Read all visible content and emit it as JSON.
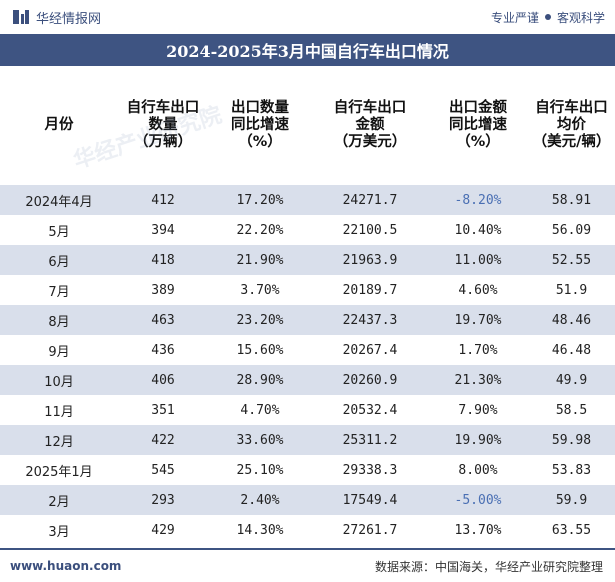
{
  "brand": {
    "name": "华经情报网",
    "tagline_left": "专业严谨",
    "tagline_right": "客观科学"
  },
  "title": "2024-2025年3月中国自行车出口情况",
  "columns": [
    "月份",
    "自行车出口\n数量\n（万辆）",
    "出口数量\n同比增速\n（%）",
    "自行车出口\n金额\n（万美元）",
    "出口金额\n同比增速\n（%）",
    "自行车出口\n均价\n（美元/辆）"
  ],
  "rows": [
    {
      "month": "2024年4月",
      "qty": "412",
      "qty_yoy": "17.20%",
      "amount": "24271.7",
      "amount_yoy": "-8.20%",
      "price": "58.91"
    },
    {
      "month": "5月",
      "qty": "394",
      "qty_yoy": "22.20%",
      "amount": "22100.5",
      "amount_yoy": "10.40%",
      "price": "56.09"
    },
    {
      "month": "6月",
      "qty": "418",
      "qty_yoy": "21.90%",
      "amount": "21963.9",
      "amount_yoy": "11.00%",
      "price": "52.55"
    },
    {
      "month": "7月",
      "qty": "389",
      "qty_yoy": "3.70%",
      "amount": "20189.7",
      "amount_yoy": "4.60%",
      "price": "51.9"
    },
    {
      "month": "8月",
      "qty": "463",
      "qty_yoy": "23.20%",
      "amount": "22437.3",
      "amount_yoy": "19.70%",
      "price": "48.46"
    },
    {
      "month": "9月",
      "qty": "436",
      "qty_yoy": "15.60%",
      "amount": "20267.4",
      "amount_yoy": "1.70%",
      "price": "46.48"
    },
    {
      "month": "10月",
      "qty": "406",
      "qty_yoy": "28.90%",
      "amount": "20260.9",
      "amount_yoy": "21.30%",
      "price": "49.9"
    },
    {
      "month": "11月",
      "qty": "351",
      "qty_yoy": "4.70%",
      "amount": "20532.4",
      "amount_yoy": "7.90%",
      "price": "58.5"
    },
    {
      "month": "12月",
      "qty": "422",
      "qty_yoy": "33.60%",
      "amount": "25311.2",
      "amount_yoy": "19.90%",
      "price": "59.98"
    },
    {
      "month": "2025年1月",
      "qty": "545",
      "qty_yoy": "25.10%",
      "amount": "29338.3",
      "amount_yoy": "8.00%",
      "price": "53.83"
    },
    {
      "month": "2月",
      "qty": "293",
      "qty_yoy": "2.40%",
      "amount": "17549.4",
      "amount_yoy": "-5.00%",
      "price": "59.9"
    },
    {
      "month": "3月",
      "qty": "429",
      "qty_yoy": "14.30%",
      "amount": "27261.7",
      "amount_yoy": "13.70%",
      "price": "63.55"
    }
  ],
  "watermark": "华经产业研究院",
  "footer": {
    "url": "www.huaon.com",
    "source": "数据来源：中国海关，华经产业研究院整理"
  },
  "colors": {
    "accent": "#3e5482",
    "stripe": "#d9dfeb",
    "negative": "#4a6fb3"
  }
}
